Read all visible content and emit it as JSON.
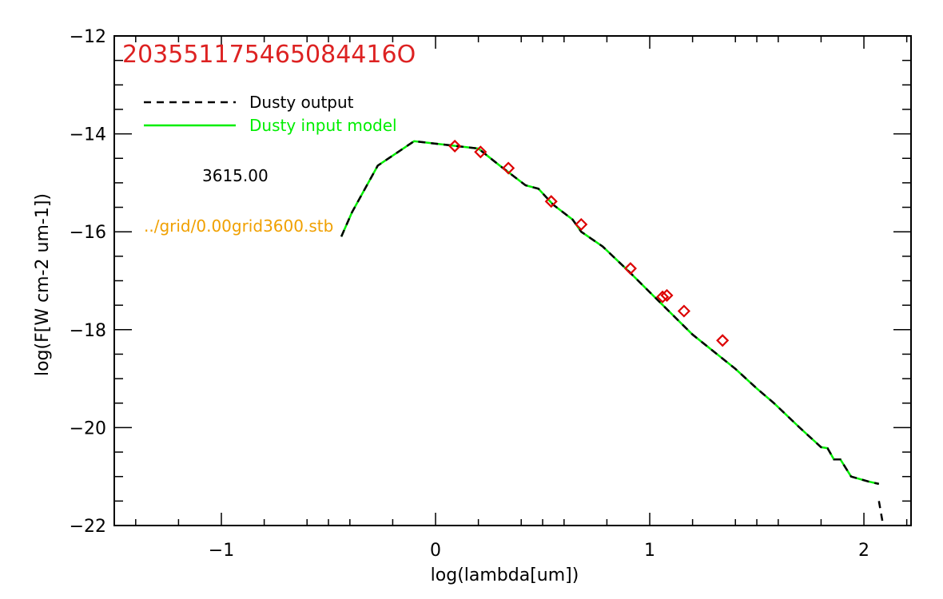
{
  "chart_data": {
    "type": "line",
    "title": "203551175465084416O",
    "xlabel": "log(lambda[um])",
    "ylabel": "log(F[W cm-2 um-1])",
    "xlim": [
      -1.5,
      2.22
    ],
    "ylim": [
      -22,
      -12
    ],
    "xticks": [
      -1,
      0,
      1,
      2
    ],
    "xtick_labels": [
      "−1",
      "0",
      "1",
      "2"
    ],
    "yticks": [
      -22,
      -20,
      -18,
      -16,
      -14,
      -12
    ],
    "ytick_labels": [
      "−22",
      "−20",
      "−18",
      "−16",
      "−14",
      "−12"
    ],
    "grid": false,
    "legend_placement": "top-left",
    "colors": {
      "output": "#000000",
      "model": "#00ee00",
      "points": "#dd0000",
      "title": "#dd2222",
      "file_label": "#f0a000"
    },
    "series": [
      {
        "name": "Dusty output",
        "style": "dashed",
        "color": "#000000",
        "x": [
          -0.44,
          -0.39,
          -0.27,
          -0.1,
          0.2,
          0.3,
          0.42,
          0.48,
          0.55,
          0.64,
          0.68,
          0.78,
          0.9,
          1.05,
          1.2,
          1.4,
          1.5,
          1.58,
          1.7,
          1.8,
          1.83,
          1.86,
          1.89,
          1.94,
          2.02,
          2.07
        ],
        "y": [
          -16.1,
          -15.6,
          -14.65,
          -14.15,
          -14.3,
          -14.65,
          -15.05,
          -15.12,
          -15.45,
          -15.75,
          -16.0,
          -16.3,
          -16.8,
          -17.45,
          -18.1,
          -18.8,
          -19.2,
          -19.5,
          -20.0,
          -20.4,
          -20.42,
          -20.65,
          -20.65,
          -21.0,
          -21.1,
          -21.15
        ]
      },
      {
        "name": "Dusty input model",
        "style": "solid",
        "color": "#00ee00",
        "x": [
          -0.44,
          -0.39,
          -0.27,
          -0.1,
          0.2,
          0.3,
          0.42,
          0.48,
          0.55,
          0.64,
          0.68,
          0.78,
          0.9,
          1.05,
          1.2,
          1.4,
          1.5,
          1.58,
          1.7,
          1.8,
          1.83,
          1.86,
          1.89,
          1.94,
          2.02,
          2.07
        ],
        "y": [
          -16.1,
          -15.6,
          -14.65,
          -14.15,
          -14.3,
          -14.65,
          -15.05,
          -15.12,
          -15.45,
          -15.75,
          -16.0,
          -16.3,
          -16.8,
          -17.45,
          -18.1,
          -18.8,
          -19.2,
          -19.5,
          -20.0,
          -20.4,
          -20.42,
          -20.65,
          -20.65,
          -21.0,
          -21.1,
          -21.15
        ]
      }
    ],
    "tail_segment": {
      "x": [
        2.07,
        2.09
      ],
      "y": [
        -21.5,
        -22.0
      ]
    },
    "points": {
      "marker": "diamond",
      "color": "#dd0000",
      "x": [
        0.09,
        0.21,
        0.34,
        0.54,
        0.68,
        0.91,
        1.06,
        1.08,
        1.16,
        1.34
      ],
      "y": [
        -14.25,
        -14.37,
        -14.7,
        -15.38,
        -15.85,
        -16.75,
        -17.33,
        -17.3,
        -17.62,
        -18.22
      ]
    },
    "annotations": {
      "temperature": "3615.00",
      "file": "../grid/0.00grid3600.stb"
    }
  }
}
